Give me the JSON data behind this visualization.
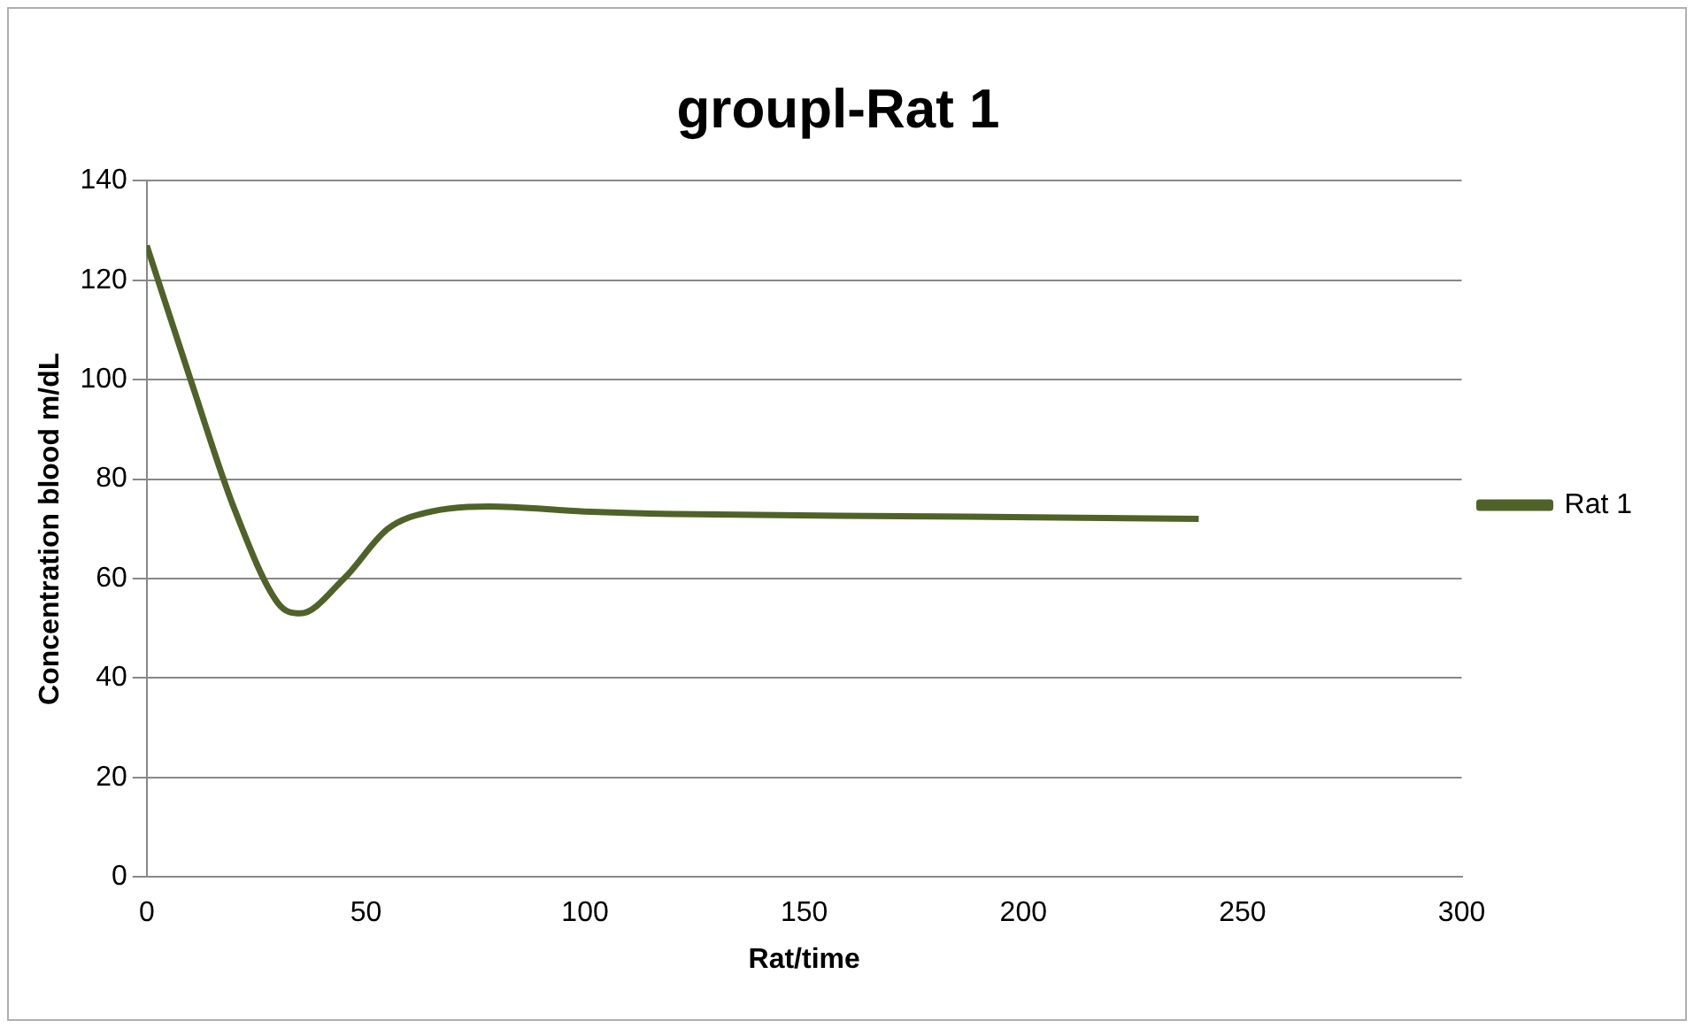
{
  "chart_data": {
    "type": "line",
    "title": "groupl-Rat 1",
    "xlabel": "Rat/time",
    "ylabel": "Concentration blood m/dL",
    "x": [
      0,
      10,
      20,
      30,
      35,
      45,
      55,
      65,
      78,
      100,
      120,
      180,
      240
    ],
    "series": [
      {
        "name": "Rat 1",
        "color": "#4f6228",
        "values": [
          127,
          100,
          74,
          55,
          53,
          60,
          70,
          73.5,
          74.5,
          73.5,
          73,
          72.5,
          72
        ]
      }
    ],
    "xlim": [
      0,
      300
    ],
    "xticks": [
      0,
      50,
      100,
      150,
      200,
      250,
      300
    ],
    "ylim": [
      0,
      140
    ],
    "yticks": [
      0,
      20,
      40,
      60,
      80,
      100,
      120,
      140
    ],
    "grid": "y",
    "legend": "right",
    "marker": "none",
    "line_style": "solid"
  }
}
